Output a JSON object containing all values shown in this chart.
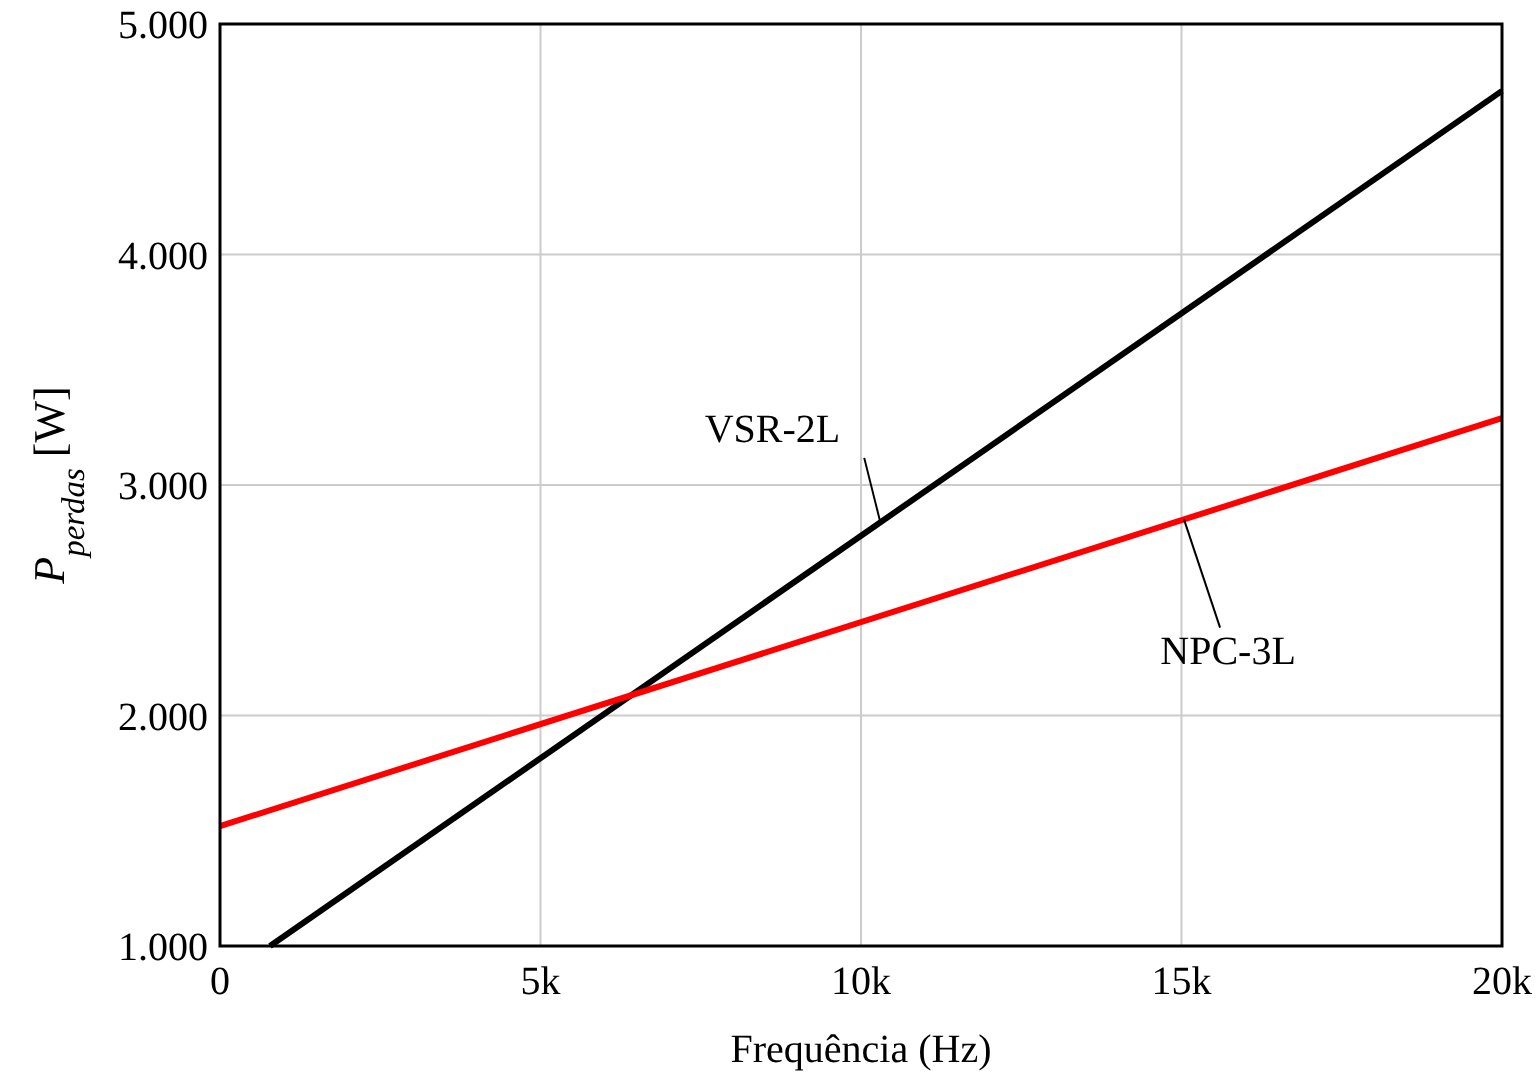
{
  "chart_data": {
    "type": "line",
    "xlabel": "Frequência (Hz)",
    "ylabel": "P$_{perdas}$ [W]",
    "xlim": [
      0,
      20000
    ],
    "xticks": [
      0,
      {
        "value": 5000,
        "label": "5k"
      },
      {
        "value": 10000,
        "label": "10k"
      },
      {
        "value": 15000,
        "label": "15k"
      },
      {
        "value": 20000,
        "label": "20k"
      }
    ],
    "ylim": [
      1000,
      5000
    ],
    "yticks": [
      {
        "value": 1000,
        "label": "1.000"
      },
      {
        "value": 2000,
        "label": "2.000"
      },
      {
        "value": 3000,
        "label": "3.000"
      },
      {
        "value": 4000,
        "label": "4.000"
      },
      {
        "value": 5000,
        "label": "5.000"
      }
    ],
    "grid": true,
    "marker": "none",
    "line_style": "solid",
    "series": [
      {
        "color": "#000000",
        "x": [
          780,
          20000
        ],
        "values": [
          1000,
          4710
        ]
      },
      {
        "color": "#ff0000",
        "x": [
          0,
          20000
        ],
        "values": [
          1520,
          3290
        ]
      }
    ],
    "annotations": [
      {
        "text": "VSR-2L",
        "x": 10300,
        "y": 2840
      },
      {
        "text": "NPC-3L",
        "x": 15040,
        "y": 2850
      }
    ]
  }
}
